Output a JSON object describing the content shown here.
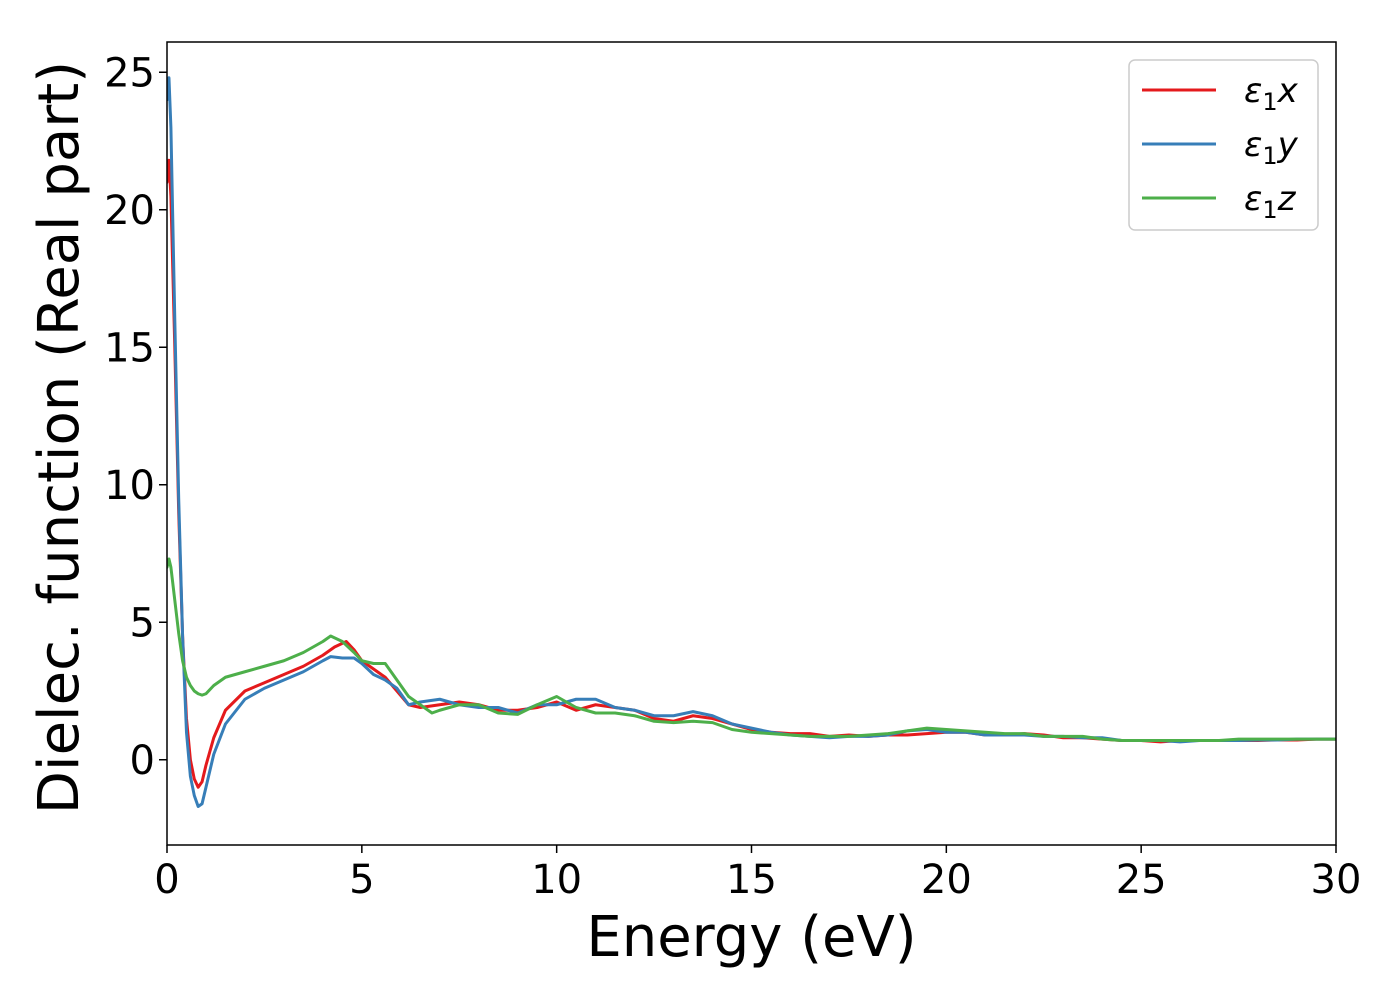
{
  "chart_data": {
    "type": "line",
    "title": "",
    "xlabel": "Energy (eV)",
    "ylabel": "Dielec. function (Real part)",
    "xlim": [
      0,
      30
    ],
    "ylim": [
      -3.1,
      26.1
    ],
    "xticks": [
      0,
      5,
      10,
      15,
      20,
      25,
      30
    ],
    "yticks": [
      0,
      5,
      10,
      15,
      20,
      25
    ],
    "grid": false,
    "legend_position": "top-right",
    "series": [
      {
        "name": "ε1x",
        "legend_main": "ε",
        "legend_sub": "1",
        "legend_tail": "x",
        "color": "#e41a1c",
        "x": [
          0,
          0.05,
          0.1,
          0.2,
          0.3,
          0.4,
          0.5,
          0.6,
          0.7,
          0.8,
          0.9,
          1.0,
          1.2,
          1.5,
          2.0,
          2.5,
          3.0,
          3.5,
          4.0,
          4.3,
          4.6,
          4.8,
          5.0,
          5.3,
          5.6,
          5.9,
          6.2,
          6.5,
          7.0,
          7.5,
          8.0,
          8.5,
          9.0,
          9.5,
          10.0,
          10.5,
          11.0,
          11.5,
          12.0,
          12.5,
          13.0,
          13.5,
          14.0,
          14.5,
          15.0,
          15.5,
          16.0,
          16.5,
          17.0,
          17.5,
          18.0,
          18.5,
          19.0,
          19.5,
          20.0,
          20.5,
          21.0,
          21.5,
          22.0,
          22.5,
          23.0,
          23.5,
          24.0,
          24.5,
          25.0,
          25.5,
          26.0,
          26.5,
          27.0,
          27.5,
          28.0,
          28.5,
          29.0,
          29.5,
          30.0
        ],
        "values": [
          21.0,
          21.8,
          20.5,
          15.0,
          9.0,
          4.5,
          1.5,
          0.0,
          -0.7,
          -1.0,
          -0.8,
          -0.2,
          0.8,
          1.8,
          2.5,
          2.8,
          3.1,
          3.4,
          3.8,
          4.1,
          4.3,
          4.0,
          3.6,
          3.3,
          3.0,
          2.5,
          2.0,
          1.9,
          2.0,
          2.1,
          2.0,
          1.8,
          1.8,
          1.9,
          2.1,
          1.8,
          2.0,
          1.9,
          1.8,
          1.5,
          1.4,
          1.6,
          1.5,
          1.3,
          1.1,
          1.0,
          0.95,
          0.95,
          0.85,
          0.9,
          0.85,
          0.9,
          0.9,
          0.95,
          1.0,
          1.0,
          0.9,
          0.9,
          0.95,
          0.9,
          0.8,
          0.8,
          0.75,
          0.7,
          0.7,
          0.65,
          0.7,
          0.7,
          0.7,
          0.7,
          0.7,
          0.72,
          0.72,
          0.75,
          0.75
        ]
      },
      {
        "name": "ε1y",
        "legend_main": "ε",
        "legend_sub": "1",
        "legend_tail": "y",
        "color": "#377eb8",
        "x": [
          0,
          0.05,
          0.1,
          0.2,
          0.3,
          0.4,
          0.5,
          0.6,
          0.7,
          0.8,
          0.9,
          1.0,
          1.2,
          1.5,
          2.0,
          2.5,
          3.0,
          3.5,
          4.0,
          4.2,
          4.5,
          4.8,
          5.0,
          5.3,
          5.6,
          5.9,
          6.2,
          6.5,
          7.0,
          7.5,
          8.0,
          8.5,
          9.0,
          9.5,
          10.0,
          10.5,
          11.0,
          11.5,
          12.0,
          12.5,
          13.0,
          13.5,
          14.0,
          14.5,
          15.0,
          15.5,
          16.0,
          16.5,
          17.0,
          17.5,
          18.0,
          18.5,
          19.0,
          19.5,
          20.0,
          20.5,
          21.0,
          21.5,
          22.0,
          22.5,
          23.0,
          23.5,
          24.0,
          24.5,
          25.0,
          25.5,
          26.0,
          26.5,
          27.0,
          27.5,
          28.0,
          28.5,
          29.0,
          29.5,
          30.0
        ],
        "values": [
          24.0,
          24.8,
          23.0,
          16.0,
          9.5,
          4.5,
          1.0,
          -0.6,
          -1.3,
          -1.7,
          -1.6,
          -1.0,
          0.2,
          1.3,
          2.2,
          2.6,
          2.9,
          3.2,
          3.6,
          3.75,
          3.7,
          3.7,
          3.5,
          3.1,
          2.9,
          2.6,
          2.0,
          2.1,
          2.2,
          2.0,
          1.9,
          1.9,
          1.7,
          2.0,
          2.0,
          2.2,
          2.2,
          1.9,
          1.8,
          1.6,
          1.6,
          1.75,
          1.6,
          1.3,
          1.15,
          1.0,
          0.9,
          0.85,
          0.8,
          0.85,
          0.85,
          0.9,
          1.05,
          1.1,
          1.0,
          1.0,
          0.9,
          0.9,
          0.9,
          0.85,
          0.85,
          0.8,
          0.8,
          0.7,
          0.7,
          0.7,
          0.65,
          0.7,
          0.7,
          0.7,
          0.72,
          0.72,
          0.75,
          0.75,
          0.75
        ]
      },
      {
        "name": "ε1z",
        "legend_main": "ε",
        "legend_sub": "1",
        "legend_tail": "z",
        "color": "#4daf4a",
        "x": [
          0,
          0.05,
          0.1,
          0.2,
          0.3,
          0.4,
          0.5,
          0.6,
          0.7,
          0.8,
          0.9,
          1.0,
          1.2,
          1.5,
          2.0,
          2.5,
          3.0,
          3.5,
          4.0,
          4.2,
          4.5,
          4.8,
          5.0,
          5.3,
          5.6,
          5.9,
          6.2,
          6.5,
          6.8,
          7.0,
          7.5,
          8.0,
          8.5,
          9.0,
          9.5,
          10.0,
          10.5,
          11.0,
          11.5,
          12.0,
          12.5,
          13.0,
          13.5,
          14.0,
          14.5,
          15.0,
          15.5,
          16.0,
          16.5,
          17.0,
          17.5,
          18.0,
          18.5,
          19.0,
          19.5,
          20.0,
          20.5,
          21.0,
          21.5,
          22.0,
          22.5,
          23.0,
          23.5,
          24.0,
          24.5,
          25.0,
          25.5,
          26.0,
          26.5,
          27.0,
          27.5,
          28.0,
          28.5,
          29.0,
          29.5,
          30.0
        ],
        "values": [
          7.0,
          7.3,
          7.0,
          5.8,
          4.6,
          3.6,
          3.0,
          2.7,
          2.5,
          2.4,
          2.35,
          2.4,
          2.7,
          3.0,
          3.2,
          3.4,
          3.6,
          3.9,
          4.3,
          4.5,
          4.3,
          3.9,
          3.6,
          3.5,
          3.5,
          2.9,
          2.3,
          2.0,
          1.7,
          1.8,
          2.0,
          2.0,
          1.7,
          1.65,
          2.0,
          2.3,
          1.9,
          1.7,
          1.7,
          1.6,
          1.4,
          1.35,
          1.4,
          1.35,
          1.1,
          1.0,
          0.95,
          0.9,
          0.85,
          0.85,
          0.85,
          0.9,
          0.95,
          1.05,
          1.15,
          1.1,
          1.05,
          1.0,
          0.95,
          0.95,
          0.85,
          0.85,
          0.85,
          0.75,
          0.7,
          0.7,
          0.7,
          0.7,
          0.7,
          0.7,
          0.75,
          0.75,
          0.75,
          0.75,
          0.75,
          0.75
        ]
      }
    ]
  }
}
